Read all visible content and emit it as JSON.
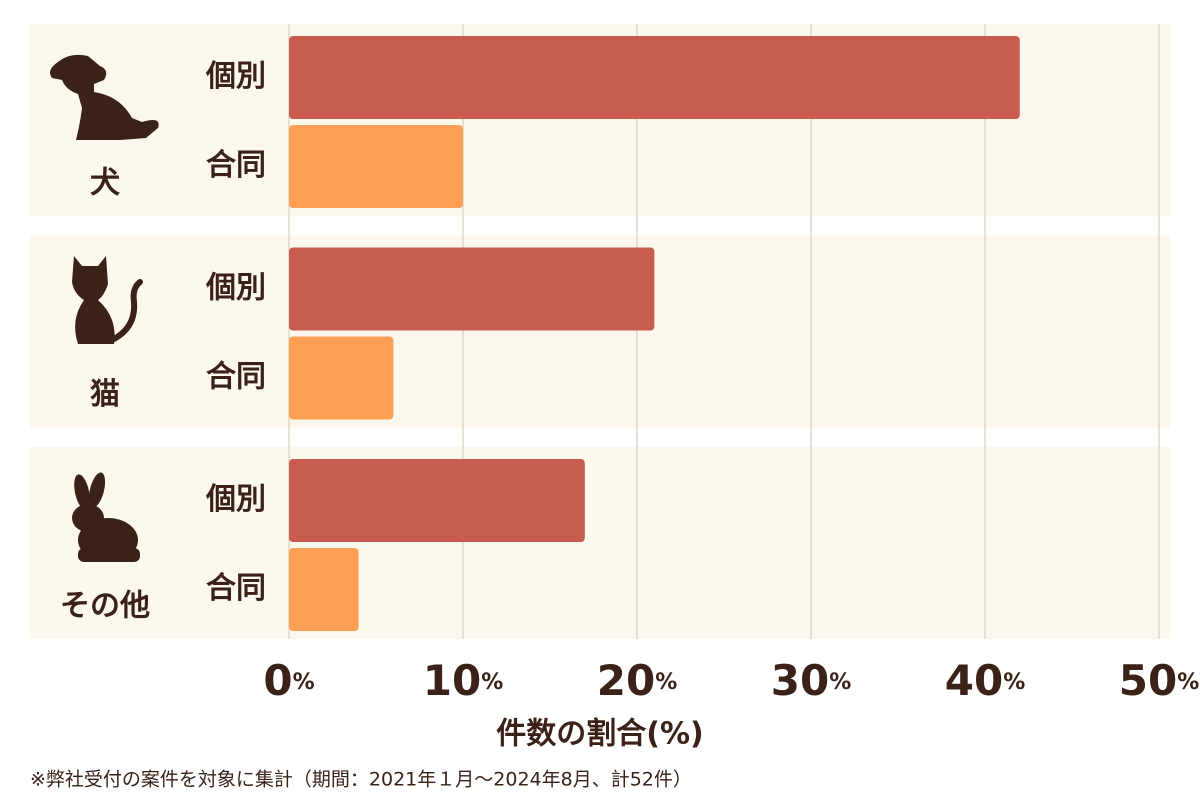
{
  "chart_data": {
    "type": "bar",
    "orientation": "horizontal",
    "categories": [
      "犬",
      "猫",
      "その他"
    ],
    "series": [
      {
        "name": "個別",
        "color": "#c85c4f",
        "values": [
          42,
          21,
          17
        ]
      },
      {
        "name": "合同",
        "color": "#fd9f54",
        "values": [
          10,
          6,
          4
        ]
      }
    ],
    "xlim": [
      0,
      50
    ],
    "xticks": [
      {
        "value": 0,
        "label": "0%"
      },
      {
        "value": 10,
        "label": "10%"
      },
      {
        "value": 20,
        "label": "20%"
      },
      {
        "value": 30,
        "label": "30%"
      },
      {
        "value": 40,
        "label": "40%"
      },
      {
        "value": 50,
        "label": "50%"
      }
    ],
    "grid": true,
    "xlabel": "件数の割合(%)",
    "footnote": "※弊社受付の案件を対象に集計（期間：2021年１月〜2024年8月、計52件）"
  }
}
